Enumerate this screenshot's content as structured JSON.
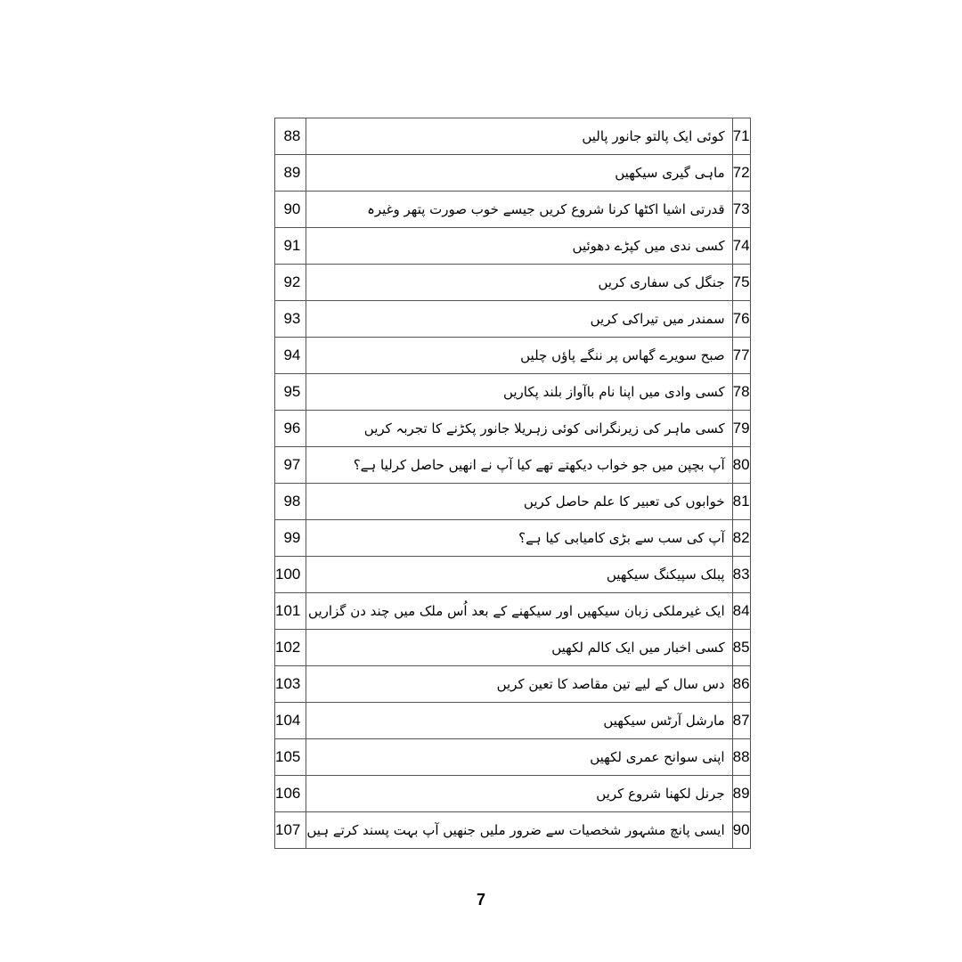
{
  "rows": [
    {
      "number": "71",
      "text": "کوئی ایک پالتو جانور پالیں",
      "page": "88"
    },
    {
      "number": "72",
      "text": "ماہی گیری سیکھیں",
      "page": "89"
    },
    {
      "number": "73",
      "text": "قدرتی اشیا اکٹھا کرنا شروع کریں جیسے خوب صورت پتھر وغیرہ",
      "page": "90"
    },
    {
      "number": "74",
      "text": "کسی ندی میں کپڑے دھوئیں",
      "page": "91"
    },
    {
      "number": "75",
      "text": "جنگل کی سفاری کریں",
      "page": "92"
    },
    {
      "number": "76",
      "text": "سمندر میں تیراکی کریں",
      "page": "93"
    },
    {
      "number": "77",
      "text": "صبح سویرے گھاس پر ننگے پاؤں چلیں",
      "page": "94"
    },
    {
      "number": "78",
      "text": "کسی وادی میں اپنا نام باآواز بلند پکاریں",
      "page": "95"
    },
    {
      "number": "79",
      "text": "کسی ماہر کی زیرنگرانی کوئی زہریلا جانور پکڑنے کا تجربہ کریں",
      "page": "96"
    },
    {
      "number": "80",
      "text": "آپ بچپن میں جو خواب دیکھتے تھے کیا آپ نے انھیں حاصل کرلیا ہے؟",
      "page": "97"
    },
    {
      "number": "81",
      "text": "خوابوں کی تعبیر کا علم حاصل کریں",
      "page": "98"
    },
    {
      "number": "82",
      "text": "آپ کی سب سے بڑی کامیابی کیا ہے؟",
      "page": "99"
    },
    {
      "number": "83",
      "text": "پبلک سپیکنگ سیکھیں",
      "page": "100"
    },
    {
      "number": "84",
      "text": "ایک غیرملکی زبان سیکھیں اور سیکھنے کے بعد اُس ملک میں چند دن گزاریں",
      "page": "101"
    },
    {
      "number": "85",
      "text": "کسی اخبار میں ایک کالم لکھیں",
      "page": "102"
    },
    {
      "number": "86",
      "text": "دس سال کے لیے تین مقاصد کا تعین کریں",
      "page": "103"
    },
    {
      "number": "87",
      "text": "مارشل آرٹس سیکھیں",
      "page": "104"
    },
    {
      "number": "88",
      "text": "اپنی سوانح عمری لکھیں",
      "page": "105"
    },
    {
      "number": "89",
      "text": "جرنل لکھنا شروع کریں",
      "page": "106"
    },
    {
      "number": "90",
      "text": "ایسی پانچ مشہور شخصیات سے ضرور ملیں جنھیں آپ بہت پسند کرتے ہیں",
      "page": "107"
    }
  ],
  "footer": {
    "page_number": "7"
  }
}
